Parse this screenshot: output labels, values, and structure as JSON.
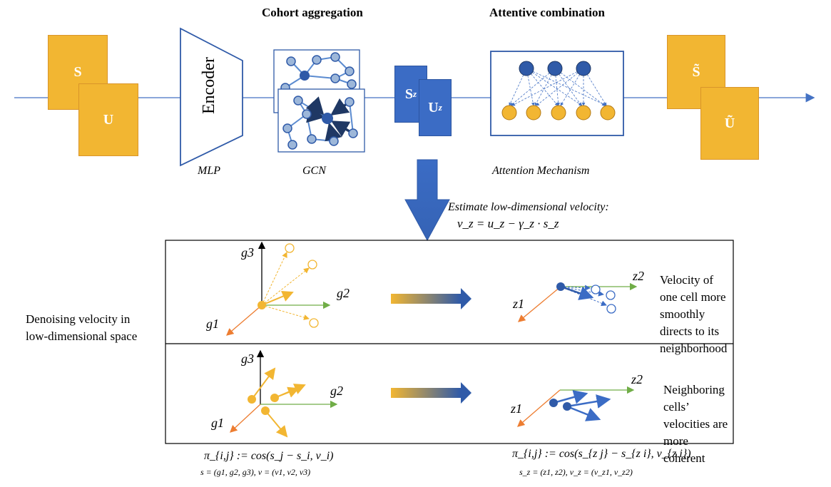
{
  "titles": {
    "cohort": "Cohort aggregation",
    "attentive": "Attentive combination"
  },
  "boxes": {
    "s": "S",
    "u": "U",
    "sz": "S",
    "sz_sub": "z",
    "uz": "U",
    "uz_sub": "z",
    "s_tilde": "S̃",
    "u_tilde": "Ũ"
  },
  "encoder": {
    "label": "Encoder"
  },
  "captions": {
    "mlp": "MLP",
    "gcn": "GCN",
    "attention": "Attention Mechanism"
  },
  "estimate": {
    "label": "Estimate low-dimensional velocity:",
    "equation": "v_z = u_z − γ_z · s_z"
  },
  "side_label": "Denoising velocity in low-dimensional space",
  "panels": {
    "top": {
      "left_axes": {
        "g3": "g3",
        "g2": "g2",
        "g1": "g1"
      },
      "right_axes": {
        "z2": "z2",
        "z1": "z1"
      },
      "text": "Velocity of one cell more smoothly directs to its neighborhood"
    },
    "bottom": {
      "left_axes": {
        "g3": "g3",
        "g2": "g2",
        "g1": "g1"
      },
      "right_axes": {
        "z2": "z2",
        "z1": "z1"
      },
      "text": "Neighboring cells’ velocities are more coherent"
    }
  },
  "formulas": {
    "left_main": "π_{i,j} := cos(s_j − s_i, v_i)",
    "left_sub": "s = (g1, g2, g3), v = (v1, v2, v3)",
    "right_main": "π_{i,j} := cos(s_{z j} − s_{z i}, v_{z i})",
    "right_sub": "s_z = (z1, z2), v_z = (v_z1, v_z2)"
  },
  "colors": {
    "orange": "#f2b632",
    "blue": "#3b6cc5",
    "green_axis": "#70ad47",
    "orange_axis": "#ed7d31",
    "line": "#5b8bd0"
  }
}
